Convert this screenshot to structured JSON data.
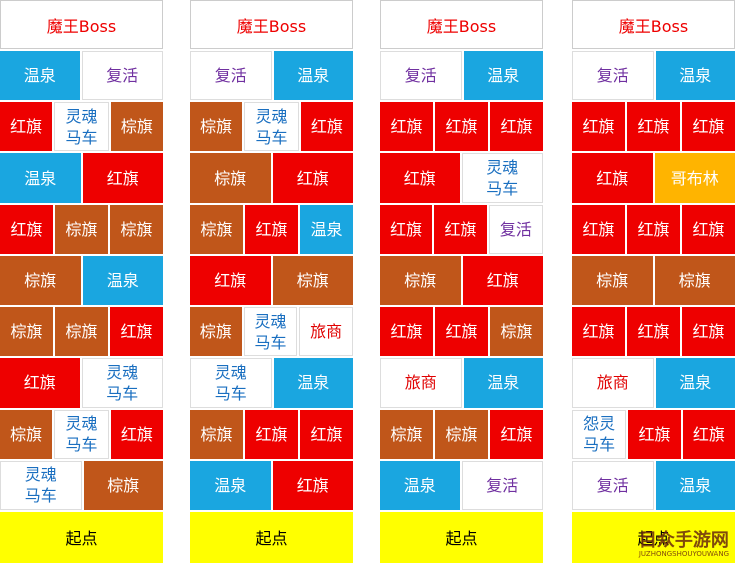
{
  "styles": {
    "红旗": {
      "bg": "#ee0000",
      "fg": "#ffffff"
    },
    "棕旗": {
      "bg": "#c0561a",
      "fg": "#ffffff"
    },
    "温泉": {
      "bg": "#1aa6e0",
      "fg": "#ffffff"
    },
    "复活": {
      "bg": "#ffffff",
      "fg": "#7030a0"
    },
    "灵魂马车": {
      "bg": "#ffffff",
      "fg": "#1a6fc0"
    },
    "怨灵马车": {
      "bg": "#ffffff",
      "fg": "#1a6fc0"
    },
    "旅商": {
      "bg": "#ffffff",
      "fg": "#e00000"
    },
    "哥布林": {
      "bg": "#ffb400",
      "fg": "#ffffff"
    }
  },
  "columns": [
    {
      "header": "魔王Boss",
      "footer": "起点",
      "rows": [
        [
          "温泉",
          "复活"
        ],
        [
          "红旗",
          [
            "灵魂",
            "马车"
          ],
          "棕旗"
        ],
        [
          "温泉",
          "红旗"
        ],
        [
          "红旗",
          "棕旗",
          "棕旗"
        ],
        [
          "棕旗",
          "温泉"
        ],
        [
          "棕旗",
          "棕旗",
          "红旗"
        ],
        [
          "红旗",
          [
            "灵魂",
            "马车"
          ]
        ],
        [
          "棕旗",
          [
            "灵魂",
            "马车"
          ],
          "红旗"
        ],
        [
          [
            "灵魂",
            "马车"
          ],
          "棕旗"
        ]
      ]
    },
    {
      "header": "魔王Boss",
      "footer": "起点",
      "rows": [
        [
          "复活",
          "温泉"
        ],
        [
          "棕旗",
          [
            "灵魂",
            "马车"
          ],
          "红旗"
        ],
        [
          "棕旗",
          "红旗"
        ],
        [
          "棕旗",
          "红旗",
          "温泉"
        ],
        [
          "红旗",
          "棕旗"
        ],
        [
          "棕旗",
          [
            "灵魂",
            "马车"
          ],
          "旅商"
        ],
        [
          [
            "灵魂",
            "马车"
          ],
          "温泉"
        ],
        [
          "棕旗",
          "红旗",
          "红旗"
        ],
        [
          "温泉",
          "红旗"
        ]
      ]
    },
    {
      "header": "魔王Boss",
      "footer": "起点",
      "rows": [
        [
          "复活",
          "温泉"
        ],
        [
          "红旗",
          "红旗",
          "红旗"
        ],
        [
          "红旗",
          [
            "灵魂",
            "马车"
          ]
        ],
        [
          "红旗",
          "红旗",
          "复活"
        ],
        [
          "棕旗",
          "红旗"
        ],
        [
          "红旗",
          "红旗",
          "棕旗"
        ],
        [
          "旅商",
          "温泉"
        ],
        [
          "棕旗",
          "棕旗",
          "红旗"
        ],
        [
          "温泉",
          "复活"
        ]
      ]
    },
    {
      "header": "魔王Boss",
      "footer": "起点",
      "rows": [
        [
          "复活",
          "温泉"
        ],
        [
          "红旗",
          "红旗",
          "红旗"
        ],
        [
          "红旗",
          "哥布林"
        ],
        [
          "红旗",
          "红旗",
          "红旗"
        ],
        [
          "棕旗",
          "棕旗"
        ],
        [
          "红旗",
          "红旗",
          "红旗"
        ],
        [
          "旅商",
          "温泉"
        ],
        [
          [
            "怨灵",
            "马车"
          ],
          "红旗",
          "红旗"
        ],
        [
          "复活",
          "温泉"
        ]
      ]
    }
  ],
  "watermark": {
    "text": "目众手游网",
    "sub": "JUZHONGSHOUYOUWANG"
  }
}
